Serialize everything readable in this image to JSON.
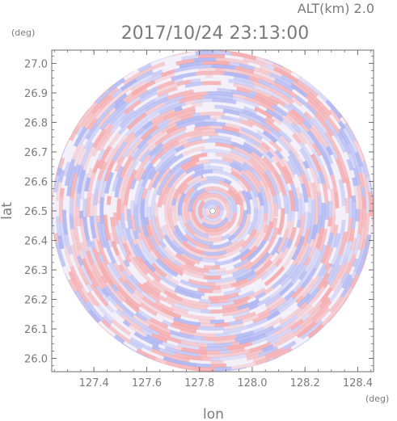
{
  "header": {
    "altitude": "ALT(km) 2.0",
    "timestamp": "2017/10/24 23:13:00"
  },
  "colors": {
    "positive": "#f59b9b",
    "negative": "#9da7ef",
    "frame": "#6e6e6e",
    "text": "#7a7a7a"
  },
  "chart_data": {
    "type": "heatmap",
    "title": "2017/10/24 23:13:00",
    "subtitle": "ALT(km) 2.0",
    "xlabel": "lon",
    "ylabel": "lat",
    "x_unit": "(deg)",
    "y_unit": "(deg)",
    "xlim": [
      127.24,
      128.46
    ],
    "ylim": [
      25.955,
      27.045
    ],
    "xticks": [
      127.4,
      127.6,
      127.8,
      128.0,
      128.2,
      128.4
    ],
    "xtick_labels": [
      "127.4",
      "127.6",
      "127.8",
      "128.0",
      "128.2",
      "128.4"
    ],
    "yticks": [
      26.0,
      26.1,
      26.2,
      26.3,
      26.4,
      26.5,
      26.6,
      26.7,
      26.8,
      26.9,
      27.0
    ],
    "ytick_labels": [
      "26.0",
      "26.1",
      "26.2",
      "26.3",
      "26.4",
      "26.5",
      "26.6",
      "26.7",
      "26.8",
      "26.9",
      "27.0"
    ],
    "center": [
      127.85,
      26.5
    ],
    "radius_deg_lat": 0.545,
    "grid": false
  }
}
